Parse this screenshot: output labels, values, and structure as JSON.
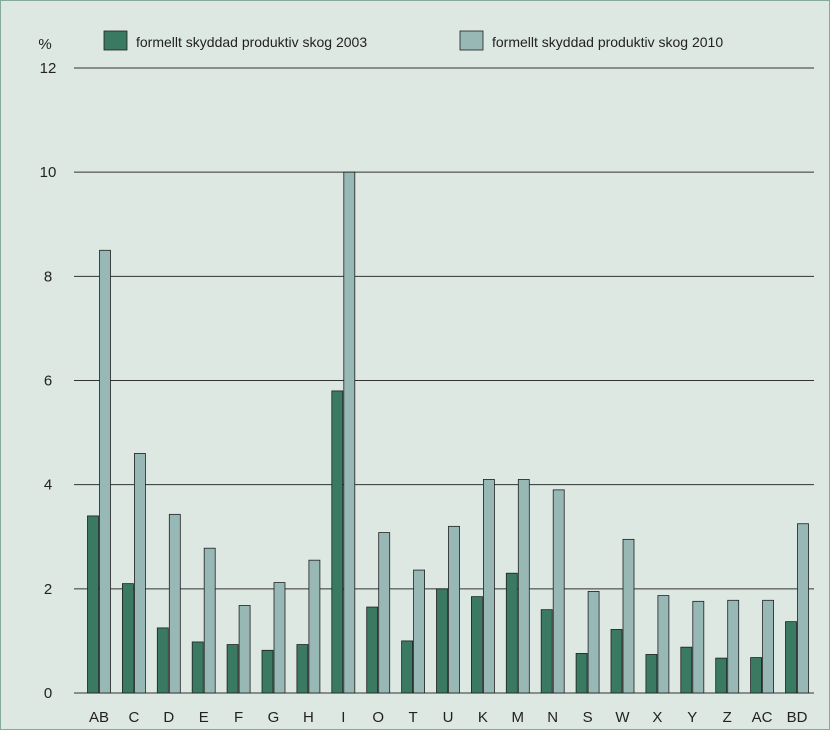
{
  "chart_data": {
    "type": "bar",
    "ylabel": "%",
    "ylim": [
      0,
      12
    ],
    "yticks": [
      0,
      2,
      4,
      6,
      8,
      10,
      12
    ],
    "grid": true,
    "legend_position": "top",
    "categories": [
      "AB",
      "C",
      "D",
      "E",
      "F",
      "G",
      "H",
      "I",
      "O",
      "T",
      "U",
      "K",
      "M",
      "N",
      "S",
      "W",
      "X",
      "Y",
      "Z",
      "AC",
      "BD"
    ],
    "series": [
      {
        "name": "formellt skyddad produktiv skog 2003",
        "color": "#3a7a62",
        "values": [
          3.4,
          2.1,
          1.25,
          0.98,
          0.93,
          0.82,
          0.93,
          5.8,
          1.65,
          1.0,
          2.0,
          1.85,
          2.3,
          1.6,
          0.76,
          1.22,
          0.74,
          0.88,
          0.67,
          0.68,
          1.37
        ]
      },
      {
        "name": "formellt skyddad produktiv skog 2010",
        "color": "#98b8b5",
        "values": [
          8.5,
          4.6,
          3.43,
          2.78,
          1.68,
          2.12,
          2.55,
          10.0,
          3.08,
          2.36,
          3.2,
          4.1,
          4.1,
          3.9,
          1.95,
          2.95,
          1.87,
          1.76,
          1.78,
          1.78,
          3.25
        ]
      }
    ]
  },
  "style": {
    "background": "#dde8e2",
    "frame": "#85a99b"
  }
}
